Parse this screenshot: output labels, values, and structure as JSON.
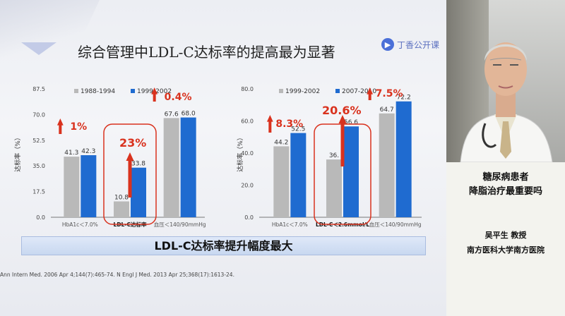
{
  "slide": {
    "title": "综合管理中LDL-C达标率的提高最为显著",
    "logo_text": "丁香公开课",
    "logo_icon": "play-icon",
    "banner": "LDL-C达标率提升幅度最大",
    "reference": "Ann Intern Med. 2006 Apr 4;144(7):465-74. N Engl J Med. 2013 Apr 25;368(17):1613-24."
  },
  "panel": {
    "title_line1": "糖尿病患者",
    "title_line2": "降脂治疗最重要吗",
    "speaker": "吴平生  教授",
    "affiliation": "南方医科大学南方医院"
  },
  "colors": {
    "gray_bar": "#b9b9b9",
    "blue_bar": "#1f6bd0",
    "red": "#d9321e"
  },
  "chart_data": [
    {
      "type": "bar",
      "ylabel": "达标率（%）",
      "ylim": [
        0,
        87.5
      ],
      "yticks": [
        "0.0",
        "17.5",
        "35.0",
        "52.5",
        "70.0",
        "87.5"
      ],
      "categories": [
        "HbA1c＜7.0%",
        "LDL-C达标率",
        "血压＜140/90mmHg"
      ],
      "series": [
        {
          "name": "1988-1994",
          "values": [
            41.3,
            10.8,
            67.6
          ]
        },
        {
          "name": "1999-2002",
          "values": [
            42.3,
            33.8,
            68.0
          ]
        }
      ],
      "data_labels": [
        [
          "41.3",
          "10.8",
          "67.6"
        ],
        [
          "42.3",
          "33.8",
          "68.0"
        ]
      ],
      "improvements": [
        "1%",
        "23%",
        "0.4%"
      ],
      "highlight_category": 1
    },
    {
      "type": "bar",
      "ylabel": "达标率（%）",
      "ylim": [
        0,
        80
      ],
      "yticks": [
        "0.0",
        "20.0",
        "40.0",
        "60.0",
        "80.0"
      ],
      "categories": [
        "HbA1c＜7.0%",
        "LDL-C＜2.6mmol/L",
        "血压＜140/90mmHg"
      ],
      "series": [
        {
          "name": "1999-2002",
          "values": [
            44.2,
            36.0,
            64.7
          ]
        },
        {
          "name": "2007-2010",
          "values": [
            52.5,
            56.6,
            72.2
          ]
        }
      ],
      "data_labels": [
        [
          "44.2",
          "36.",
          "64.7"
        ],
        [
          "52.5",
          "56.6",
          "72.2"
        ]
      ],
      "improvements": [
        "8.3%",
        "20.6%",
        "7.5%"
      ],
      "highlight_category": 1
    }
  ]
}
